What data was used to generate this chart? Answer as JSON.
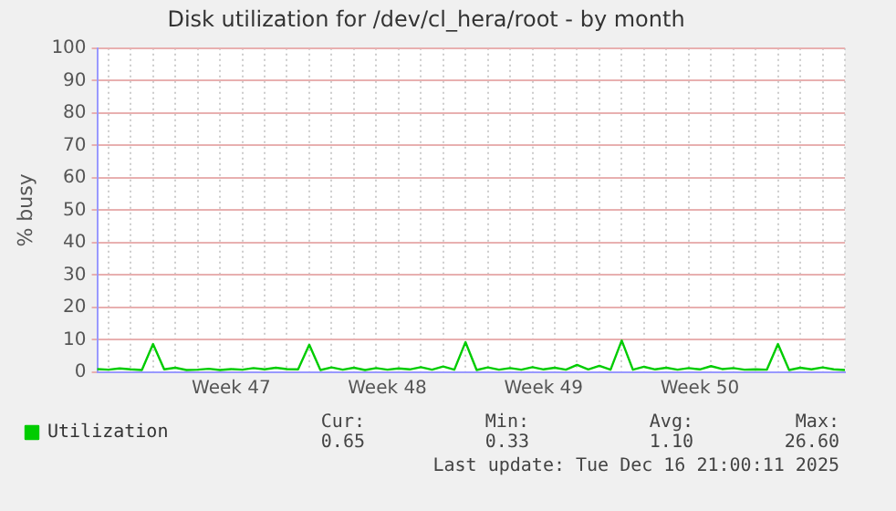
{
  "chart_data": {
    "type": "line",
    "title": "Disk utilization for /dev/cl_hera/root - by month",
    "ylabel": "% busy",
    "categories": [
      null,
      null,
      null,
      null,
      null,
      null,
      null,
      null,
      null,
      null,
      null,
      null,
      "Week 47",
      null,
      null,
      null,
      null,
      null,
      null,
      null,
      null,
      null,
      null,
      null,
      null,
      null,
      "Week 48",
      null,
      null,
      null,
      null,
      null,
      null,
      null,
      null,
      null,
      null,
      null,
      null,
      null,
      "Week 49",
      null,
      null,
      null,
      null,
      null,
      null,
      null,
      null,
      null,
      null,
      null,
      null,
      null,
      "Week 50",
      null,
      null,
      null,
      null,
      null,
      null,
      null,
      null,
      null,
      null,
      null,
      null,
      null
    ],
    "ylim": [
      0,
      100
    ],
    "yticks": [
      0,
      10,
      20,
      30,
      40,
      50,
      60,
      70,
      80,
      90,
      100
    ],
    "grid": true,
    "legend": "bottom left",
    "marker": "none",
    "line_style": "solid",
    "series": [
      {
        "name": "Utilization",
        "color": "#00cc00",
        "values": [
          1.0,
          0.8,
          1.2,
          0.9,
          0.7,
          8.7,
          0.9,
          1.4,
          0.7,
          0.8,
          1.1,
          0.7,
          1.0,
          0.8,
          1.3,
          0.9,
          1.4,
          1.0,
          0.9,
          8.5,
          0.7,
          1.5,
          0.8,
          1.4,
          0.7,
          1.3,
          0.8,
          1.2,
          0.9,
          1.6,
          0.8,
          1.8,
          0.8,
          9.3,
          0.7,
          1.5,
          0.8,
          1.3,
          0.8,
          1.6,
          0.9,
          1.4,
          0.8,
          2.3,
          0.9,
          2.0,
          0.8,
          9.8,
          0.8,
          1.7,
          0.9,
          1.4,
          0.8,
          1.3,
          0.9,
          1.9,
          1.0,
          1.3,
          0.8,
          0.9,
          0.8,
          8.7,
          0.7,
          1.4,
          0.9,
          1.5,
          0.9,
          0.7
        ]
      }
    ],
    "annotations": [
      "Cur:",
      "Min:",
      "Avg:",
      "Max:",
      "0.65",
      "0.33",
      "1.10",
      "26.60",
      "Last update: Tue Dec 16 21:00:11 2025"
    ]
  }
}
